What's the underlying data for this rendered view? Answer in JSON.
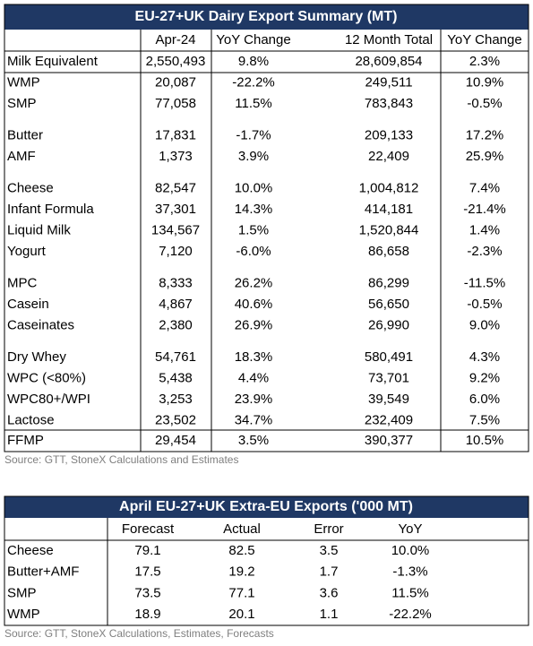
{
  "table1": {
    "title": "EU-27+UK Dairy Export Summary (MT)",
    "headers": [
      "Apr-24",
      "YoY Change",
      "12 Month Total",
      "YoY Change"
    ],
    "groups": [
      [
        [
          "Milk Equivalent",
          "2,550,493",
          "9.8%",
          "28,609,854",
          "2.3%"
        ]
      ],
      [
        [
          "WMP",
          "20,087",
          "-22.2%",
          "249,511",
          "10.9%"
        ],
        [
          "SMP",
          "77,058",
          "11.5%",
          "783,843",
          "-0.5%"
        ]
      ],
      [
        [
          "Butter",
          "17,831",
          "-1.7%",
          "209,133",
          "17.2%"
        ],
        [
          "AMF",
          "1,373",
          "3.9%",
          "22,409",
          "25.9%"
        ]
      ],
      [
        [
          "Cheese",
          "82,547",
          "10.0%",
          "1,004,812",
          "7.4%"
        ],
        [
          "Infant Formula",
          "37,301",
          "14.3%",
          "414,181",
          "-21.4%"
        ],
        [
          "Liquid Milk",
          "134,567",
          "1.5%",
          "1,520,844",
          "1.4%"
        ],
        [
          "Yogurt",
          "7,120",
          "-6.0%",
          "86,658",
          "-2.3%"
        ]
      ],
      [
        [
          "MPC",
          "8,333",
          "26.2%",
          "86,299",
          "-11.5%"
        ],
        [
          "Casein",
          "4,867",
          "40.6%",
          "56,650",
          "-0.5%"
        ],
        [
          "Caseinates",
          "2,380",
          "26.9%",
          "26,990",
          "9.0%"
        ]
      ],
      [
        [
          "Dry Whey",
          "54,761",
          "18.3%",
          "580,491",
          "4.3%"
        ],
        [
          "WPC (<80%)",
          "5,438",
          "4.4%",
          "73,701",
          "9.2%"
        ],
        [
          "WPC80+/WPI",
          "3,253",
          "23.9%",
          "39,549",
          "6.0%"
        ],
        [
          "Lactose",
          "23,502",
          "34.7%",
          "232,409",
          "7.5%"
        ]
      ],
      [
        [
          "FFMP",
          "29,454",
          "3.5%",
          "390,377",
          "10.5%"
        ]
      ]
    ],
    "source": "Source: GTT, StoneX Calculations and Estimates"
  },
  "table2": {
    "title": "April EU-27+UK Extra-EU Exports ('000 MT)",
    "headers": [
      "Forecast",
      "Actual",
      "Error",
      "YoY"
    ],
    "rows": [
      [
        "Cheese",
        "79.1",
        "82.5",
        "3.5",
        "10.0%"
      ],
      [
        "Butter+AMF",
        "17.5",
        "19.2",
        "1.7",
        "-1.3%"
      ],
      [
        "SMP",
        "73.5",
        "77.1",
        "3.6",
        "11.5%"
      ],
      [
        "WMP",
        "18.9",
        "20.1",
        "1.1",
        "-22.2%"
      ]
    ],
    "source": "Source: GTT, StoneX Calculations, Estimates, Forecasts"
  }
}
